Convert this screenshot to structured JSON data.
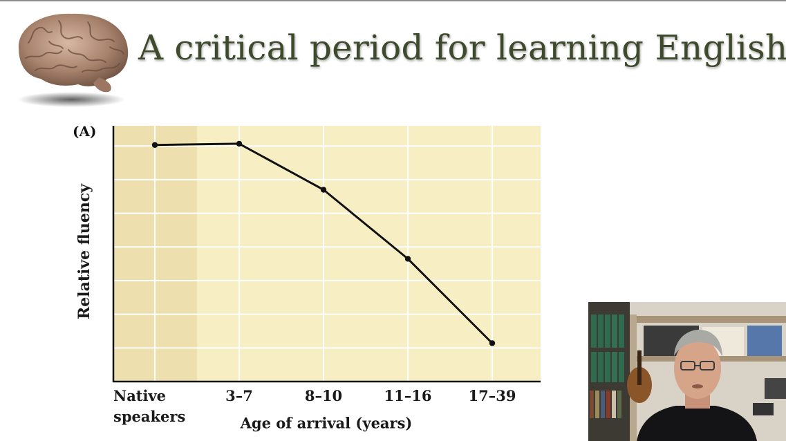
{
  "slide": {
    "title": "A critical period for learning English",
    "panel_label": "(A)"
  },
  "chart_data": {
    "type": "line",
    "title": "",
    "xlabel": "Age of arrival (years)",
    "ylabel": "Relative fluency",
    "categories": [
      "Native speakers",
      "3–7",
      "8–10",
      "11–16",
      "17–39"
    ],
    "tick_lines": [
      [
        "Native",
        "speakers"
      ],
      [
        "3–7"
      ],
      [
        "8–10"
      ],
      [
        "11–16"
      ],
      [
        "17–39"
      ]
    ],
    "series": [
      {
        "values": [
          0.925,
          0.93,
          0.75,
          0.48,
          0.15
        ]
      }
    ],
    "ylim": [
      0,
      1
    ],
    "y_tick_labels": false,
    "grid": true,
    "highlight_band": "Native speakers",
    "colors": {
      "plot_background": "#f7eec3",
      "highlight_band": "#eedfae",
      "gridline": "#ffffff",
      "line": "#111111",
      "axis": "#111111"
    }
  },
  "icons": {
    "brain": "brain-icon",
    "webcam": "presenter-webcam"
  }
}
